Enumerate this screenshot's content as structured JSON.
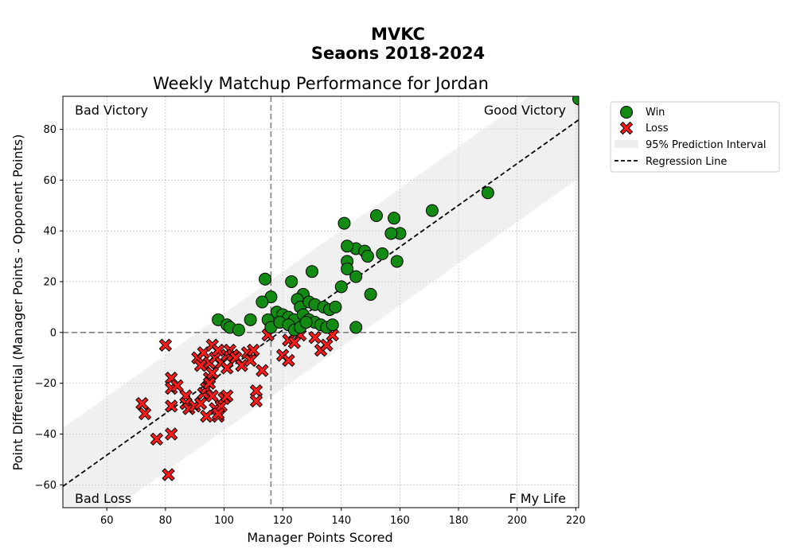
{
  "suptitle": {
    "line1": "MVKC",
    "line2": "Seaons 2018-2024"
  },
  "chart_data": {
    "type": "scatter",
    "title": "Weekly Matchup Performance for Jordan",
    "xlabel": "Manager Points Scored",
    "ylabel": "Point Differential (Manager Points - Opponent Points)",
    "xlim": [
      45,
      221
    ],
    "ylim": [
      -69,
      93
    ],
    "xticks": [
      60,
      80,
      100,
      120,
      140,
      160,
      180,
      200,
      220
    ],
    "yticks": [
      -60,
      -40,
      -20,
      0,
      20,
      40,
      60,
      80
    ],
    "grid": true,
    "mean_x": 116,
    "mean_y": 0,
    "regression": {
      "slope": 0.82,
      "intercept": -97.5,
      "pi_halfwidth": 23
    },
    "quadrant_labels": {
      "top_left": "Bad Victory",
      "top_right": "Good Victory",
      "bottom_left": "Bad Loss",
      "bottom_right": "F My Life"
    },
    "legend": {
      "position": "outside-top-right",
      "win": "Win",
      "loss": "Loss",
      "band": "95% Prediction Interval",
      "line": "Regression Line"
    },
    "colors": {
      "win": "#138a13",
      "loss": "#ff1a1a",
      "band": "#d9d9d9",
      "line": "#000000"
    },
    "series": [
      {
        "name": "Win",
        "points": [
          [
            221,
            92
          ],
          [
            190,
            55
          ],
          [
            171,
            48
          ],
          [
            152,
            46
          ],
          [
            158,
            45
          ],
          [
            141,
            43
          ],
          [
            160,
            39
          ],
          [
            157,
            39
          ],
          [
            145,
            33
          ],
          [
            142,
            34
          ],
          [
            148,
            32
          ],
          [
            149,
            30
          ],
          [
            154,
            31
          ],
          [
            159,
            28
          ],
          [
            142,
            28
          ],
          [
            142,
            25
          ],
          [
            145,
            22
          ],
          [
            140,
            18
          ],
          [
            150,
            15
          ],
          [
            114,
            21
          ],
          [
            123,
            20
          ],
          [
            130,
            24
          ],
          [
            116,
            14
          ],
          [
            113,
            12
          ],
          [
            127,
            15
          ],
          [
            125,
            13
          ],
          [
            126,
            10
          ],
          [
            129,
            12
          ],
          [
            131,
            11
          ],
          [
            134,
            10
          ],
          [
            136,
            9
          ],
          [
            138,
            10
          ],
          [
            118,
            8
          ],
          [
            120,
            7
          ],
          [
            122,
            6
          ],
          [
            124,
            5
          ],
          [
            127,
            7
          ],
          [
            129,
            5
          ],
          [
            131,
            4
          ],
          [
            133,
            3
          ],
          [
            135,
            2
          ],
          [
            137,
            3
          ],
          [
            98,
            5
          ],
          [
            101,
            3
          ],
          [
            102,
            2
          ],
          [
            105,
            1
          ],
          [
            109,
            5
          ],
          [
            115,
            5
          ],
          [
            116,
            2
          ],
          [
            119,
            4
          ],
          [
            122,
            3
          ],
          [
            124,
            1
          ],
          [
            126,
            2
          ],
          [
            128,
            4
          ],
          [
            145,
            2
          ]
        ]
      },
      {
        "name": "Loss",
        "points": [
          [
            137,
            -1
          ],
          [
            131,
            -2
          ],
          [
            126,
            -1
          ],
          [
            122,
            -3
          ],
          [
            124,
            -4
          ],
          [
            120,
            -9
          ],
          [
            122,
            -11
          ],
          [
            115,
            -1
          ],
          [
            133,
            -7
          ],
          [
            135,
            -5
          ],
          [
            80,
            -5
          ],
          [
            91,
            -10
          ],
          [
            93,
            -8
          ],
          [
            95,
            -12
          ],
          [
            96,
            -5
          ],
          [
            97,
            -10
          ],
          [
            98,
            -7
          ],
          [
            99,
            -12
          ],
          [
            101,
            -9
          ],
          [
            102,
            -7
          ],
          [
            103,
            -9
          ],
          [
            104,
            -10
          ],
          [
            106,
            -13
          ],
          [
            108,
            -8
          ],
          [
            109,
            -11
          ],
          [
            110,
            -7
          ],
          [
            113,
            -15
          ],
          [
            101,
            -14
          ],
          [
            92,
            -13
          ],
          [
            95,
            -18
          ],
          [
            96,
            -16
          ],
          [
            82,
            -18
          ],
          [
            82,
            -22
          ],
          [
            84,
            -21
          ],
          [
            87,
            -25
          ],
          [
            87,
            -28
          ],
          [
            88,
            -30
          ],
          [
            90,
            -29
          ],
          [
            92,
            -28
          ],
          [
            93,
            -24
          ],
          [
            94,
            -22
          ],
          [
            95,
            -20
          ],
          [
            96,
            -25
          ],
          [
            97,
            -30
          ],
          [
            98,
            -33
          ],
          [
            99,
            -29
          ],
          [
            100,
            -26
          ],
          [
            101,
            -25
          ],
          [
            111,
            -23
          ],
          [
            111,
            -27
          ],
          [
            94,
            -33
          ],
          [
            98,
            -32
          ],
          [
            72,
            -28
          ],
          [
            73,
            -32
          ],
          [
            82,
            -29
          ],
          [
            82,
            -40
          ],
          [
            77,
            -42
          ],
          [
            81,
            -56
          ]
        ]
      }
    ]
  }
}
